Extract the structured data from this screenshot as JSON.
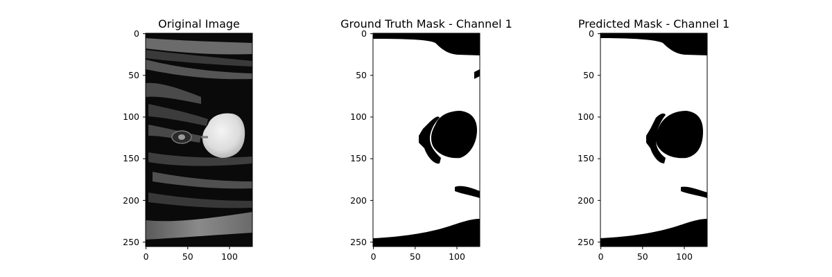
{
  "panels": [
    {
      "title": "Original Image",
      "kind": "mri",
      "x_ticks": [
        0,
        50,
        100
      ],
      "y_ticks": [
        0,
        50,
        100,
        150,
        200,
        250
      ]
    },
    {
      "title": "Ground Truth Mask - Channel 1",
      "kind": "gt-mask",
      "x_ticks": [
        0,
        50,
        100
      ],
      "y_ticks": [
        0,
        50,
        100,
        150,
        200,
        250
      ]
    },
    {
      "title": "Predicted Mask - Channel 1",
      "kind": "pred-mask",
      "x_ticks": [
        0,
        50,
        100
      ],
      "y_ticks": [
        0,
        50,
        100,
        150,
        200,
        250
      ]
    }
  ],
  "image_extent": {
    "width": 128,
    "height": 256
  },
  "colors": {
    "background": "#ffffff",
    "mask_on": "#ffffff",
    "mask_off": "#000000"
  }
}
